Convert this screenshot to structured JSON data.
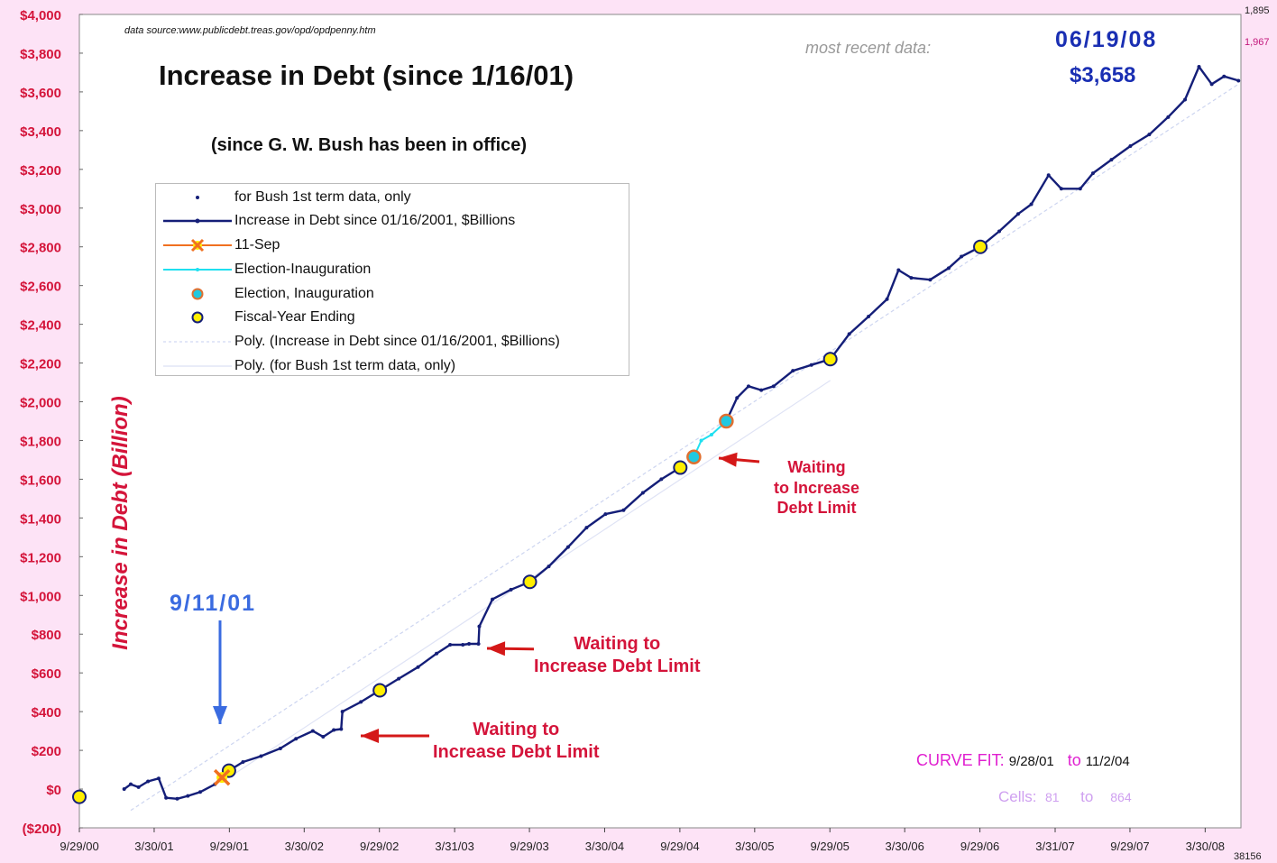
{
  "source_note": "data  source:www.publicdebt.treas.gov/opd/opdpenny.htm",
  "title": "Increase  in  Debt  (since  1/16/01)",
  "subtitle": "(since G. W. Bush has been in office)",
  "ylabel": "Increase in Debt (Billion)",
  "most_recent_label": "most  recent  data:",
  "most_recent_date": "06/19/08",
  "most_recent_value": "$3,658",
  "corner_numbers": {
    "top_right": "1,895",
    "top_right_2": "1,967",
    "bottom_right": "38156"
  },
  "annotations": {
    "sep11": "9/11/01",
    "wait1": [
      "Waiting to",
      "Increase Debt Limit"
    ],
    "wait2": [
      "Waiting to",
      "Increase Debt Limit"
    ],
    "wait3": [
      "Waiting",
      "to Increase",
      "Debt Limit"
    ]
  },
  "legend": [
    {
      "label": "for  Bush  1st  term  data,  only",
      "symbol": "dot"
    },
    {
      "label": "Increase  in  Debt  since    01/16/2001,    $Billions",
      "symbol": "navy-line"
    },
    {
      "label": "11-Sep",
      "symbol": "orange-x"
    },
    {
      "label": "Election-Inauguration",
      "symbol": "cyan-line"
    },
    {
      "label": "Election,  Inauguration",
      "symbol": "cyan-circle"
    },
    {
      "label": "Fiscal-Year Ending",
      "symbol": "yellow-circle"
    },
    {
      "label": "Poly.  (Increase  in  Debt  since    01/16/2001,    $Billions)",
      "symbol": "faint-line"
    },
    {
      "label": "Poly.  (for  Bush  1st  term  data,  only)",
      "symbol": "faint-line2"
    }
  ],
  "curve_fit": {
    "label": "CURVE FIT:",
    "from": "9/28/01",
    "to_label": "to",
    "to": "11/2/04"
  },
  "cells": {
    "label": "Cells:",
    "from": "81",
    "to_label": "to",
    "to": "864"
  },
  "colors": {
    "line": "#141e78",
    "axis_labels": "#d4143a",
    "cyan": "#20e0f0",
    "yellow": "#ffee00",
    "orange": "#f07020",
    "title_blue": "#1a2fb3"
  },
  "chart_data": {
    "type": "line",
    "title": "Increase  in  Debt  (since  1/16/01)",
    "ylabel": "Increase in Debt (Billion)",
    "ylim": [
      -200,
      4000
    ],
    "xlim": [
      "9/29/00",
      "6/25/08"
    ],
    "y_ticks": [
      -200,
      0,
      200,
      400,
      600,
      800,
      1000,
      1200,
      1400,
      1600,
      1800,
      2000,
      2200,
      2400,
      2600,
      2800,
      3000,
      3200,
      3400,
      3600,
      3800,
      4000
    ],
    "y_tick_labels": [
      "($200)",
      "$0",
      "$200",
      "$400",
      "$600",
      "$800",
      "$1,000",
      "$1,200",
      "$1,400",
      "$1,600",
      "$1,800",
      "$2,000",
      "$2,200",
      "$2,400",
      "$2,600",
      "$2,800",
      "$3,000",
      "$3,200",
      "$3,400",
      "$3,600",
      "$3,800",
      "$4,000"
    ],
    "x_ticks": [
      "9/29/00",
      "3/30/01",
      "9/29/01",
      "3/30/02",
      "9/29/02",
      "3/31/03",
      "9/29/03",
      "3/30/04",
      "9/29/04",
      "3/30/05",
      "9/29/05",
      "3/30/06",
      "9/29/06",
      "3/31/07",
      "9/29/07",
      "3/30/08"
    ],
    "grid": false,
    "legend_position": "top-left",
    "series": [
      {
        "name": "Increase  in  Debt  since    01/16/2001,    $Billions",
        "points": [
          [
            "1/16/01",
            0
          ],
          [
            "2/1/01",
            25
          ],
          [
            "2/20/01",
            10
          ],
          [
            "3/15/01",
            40
          ],
          [
            "4/10/01",
            55
          ],
          [
            "4/28/01",
            -45
          ],
          [
            "5/25/01",
            -50
          ],
          [
            "6/20/01",
            -35
          ],
          [
            "7/20/01",
            -15
          ],
          [
            "8/25/01",
            25
          ],
          [
            "9/11/01",
            60
          ],
          [
            "9/28/01",
            95
          ],
          [
            "11/1/01",
            140
          ],
          [
            "12/15/01",
            170
          ],
          [
            "1/31/02",
            210
          ],
          [
            "3/10/02",
            260
          ],
          [
            "4/20/02",
            300
          ],
          [
            "5/15/02",
            270
          ],
          [
            "6/10/02",
            305
          ],
          [
            "6/28/02",
            310
          ],
          [
            "7/1/02",
            400
          ],
          [
            "8/15/02",
            450
          ],
          [
            "9/30/02",
            510
          ],
          [
            "11/15/02",
            570
          ],
          [
            "1/1/03",
            630
          ],
          [
            "2/15/03",
            700
          ],
          [
            "3/20/03",
            745
          ],
          [
            "4/20/03",
            745
          ],
          [
            "5/5/03",
            750
          ],
          [
            "5/28/03",
            750
          ],
          [
            "5/30/03",
            840
          ],
          [
            "7/1/03",
            980
          ],
          [
            "8/15/03",
            1030
          ],
          [
            "9/30/03",
            1070
          ],
          [
            "11/15/03",
            1150
          ],
          [
            "1/1/04",
            1250
          ],
          [
            "2/15/04",
            1350
          ],
          [
            "4/1/04",
            1420
          ],
          [
            "5/15/04",
            1440
          ],
          [
            "7/1/04",
            1530
          ],
          [
            "8/15/04",
            1600
          ],
          [
            "9/30/04",
            1660
          ]
        ]
      },
      {
        "name": "Election-Inauguration",
        "points": [
          [
            "11/2/04",
            1715
          ],
          [
            "11/20/04",
            1800
          ],
          [
            "12/15/04",
            1830
          ],
          [
            "1/20/05",
            1900
          ]
        ]
      },
      {
        "name": "Increase  in  Debt  since    01/16/2001,    $Billions (cont.)",
        "points": [
          [
            "1/20/05",
            1900
          ],
          [
            "2/15/05",
            2020
          ],
          [
            "3/15/05",
            2080
          ],
          [
            "4/15/05",
            2060
          ],
          [
            "5/15/05",
            2080
          ],
          [
            "7/1/05",
            2160
          ],
          [
            "8/15/05",
            2190
          ],
          [
            "9/30/05",
            2220
          ],
          [
            "11/15/05",
            2350
          ],
          [
            "1/1/06",
            2440
          ],
          [
            "2/15/06",
            2530
          ],
          [
            "3/15/06",
            2680
          ],
          [
            "4/15/06",
            2640
          ],
          [
            "5/31/06",
            2630
          ],
          [
            "7/15/06",
            2690
          ],
          [
            "8/15/06",
            2750
          ],
          [
            "9/30/06",
            2800
          ],
          [
            "11/15/06",
            2880
          ],
          [
            "12/31/06",
            2970
          ],
          [
            "2/1/07",
            3020
          ],
          [
            "3/15/07",
            3170
          ],
          [
            "4/15/07",
            3100
          ],
          [
            "5/31/07",
            3100
          ],
          [
            "7/1/07",
            3180
          ],
          [
            "8/15/07",
            3250
          ],
          [
            "9/30/07",
            3320
          ],
          [
            "11/15/07",
            3380
          ],
          [
            "12/31/07",
            3470
          ],
          [
            "2/10/08",
            3560
          ],
          [
            "3/15/08",
            3730
          ],
          [
            "4/15/08",
            3640
          ],
          [
            "5/15/08",
            3680
          ],
          [
            "6/19/08",
            3658
          ]
        ]
      }
    ],
    "fiscal_year_markers": [
      [
        "9/29/00",
        -40
      ],
      [
        "9/28/01",
        95
      ],
      [
        "9/30/02",
        510
      ],
      [
        "9/30/03",
        1070
      ],
      [
        "9/30/04",
        1660
      ],
      [
        "9/30/05",
        2220
      ],
      [
        "9/30/06",
        2800
      ]
    ],
    "election_inauguration_markers": [
      [
        "11/2/04",
        1715
      ],
      [
        "1/20/05",
        1900
      ]
    ],
    "sep11_marker": [
      "9/11/01",
      60
    ]
  }
}
